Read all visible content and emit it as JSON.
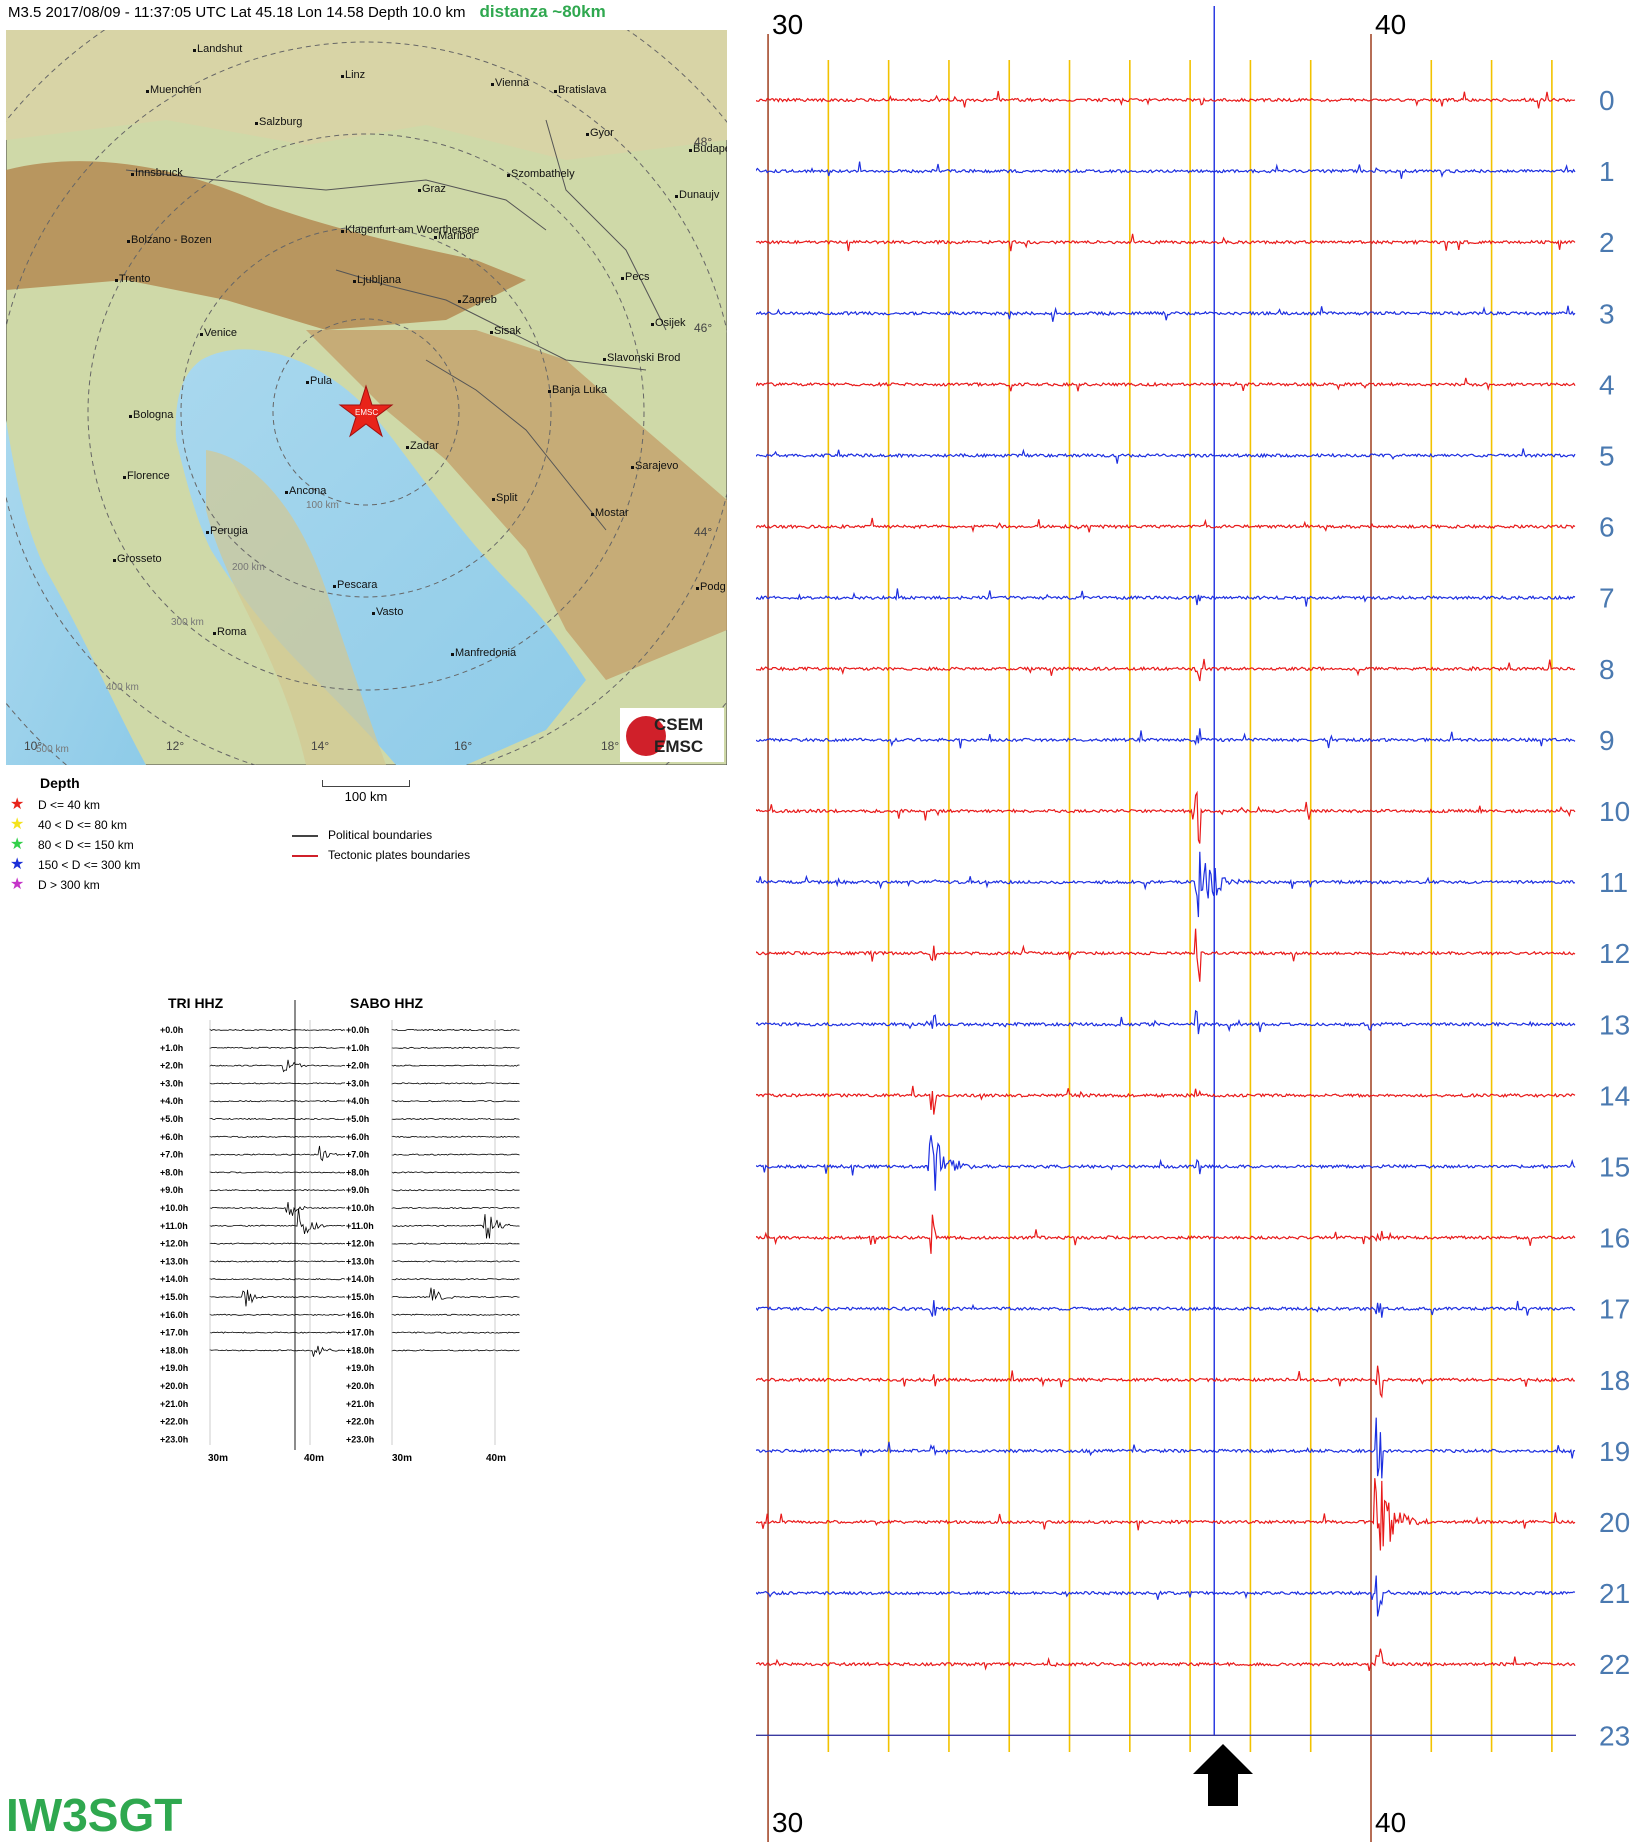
{
  "header": {
    "event": "M3.5  2017/08/09 - 11:37:05 UTC   Lat 45.18  Lon  14.58    Depth  10.0 km",
    "distance": "distanza ~80km"
  },
  "map": {
    "cities": [
      {
        "name": "Landshut"
      },
      {
        "name": "Linz"
      },
      {
        "name": "Vienna"
      },
      {
        "name": "Bratislava"
      },
      {
        "name": "Muenchen"
      },
      {
        "name": "Salzburg"
      },
      {
        "name": "Gyor"
      },
      {
        "name": "Budape"
      },
      {
        "name": "Innsbruck"
      },
      {
        "name": "Szombathely"
      },
      {
        "name": "Graz"
      },
      {
        "name": "Dunaujv"
      },
      {
        "name": "Klagenfurt am Woerthersee"
      },
      {
        "name": "Maribor"
      },
      {
        "name": "Bolzano - Bozen"
      },
      {
        "name": "Trento"
      },
      {
        "name": "Ljubljana"
      },
      {
        "name": "Zagreb"
      },
      {
        "name": "Pecs"
      },
      {
        "name": "Osijek"
      },
      {
        "name": "Venice"
      },
      {
        "name": "Sisak"
      },
      {
        "name": "Slavonski Brod"
      },
      {
        "name": "Pula"
      },
      {
        "name": "Banja Luka"
      },
      {
        "name": "Bologna"
      },
      {
        "name": "Zadar"
      },
      {
        "name": "Sarajevo"
      },
      {
        "name": "Florence"
      },
      {
        "name": "Ancona"
      },
      {
        "name": "Split"
      },
      {
        "name": "Mostar"
      },
      {
        "name": "Perugia"
      },
      {
        "name": "Grosseto"
      },
      {
        "name": "Pescara"
      },
      {
        "name": "Podg"
      },
      {
        "name": "Vasto"
      },
      {
        "name": "Roma"
      },
      {
        "name": "Manfredonia"
      }
    ],
    "ring_labels": [
      "100 km",
      "200 km",
      "300 km",
      "400 km",
      "500 km"
    ],
    "lat_labels": [
      "48°",
      "46°",
      "44°"
    ],
    "lon_labels": [
      "10°",
      "12°",
      "14°",
      "16°",
      "18°"
    ],
    "epicenter_label": "EMSC",
    "logo_top": "CSEM",
    "logo_bottom": "EMSC"
  },
  "legend": {
    "title": "Depth",
    "items": [
      {
        "label": "D <= 40 km",
        "color": "#e8231a"
      },
      {
        "label": "40 < D <= 80 km",
        "color": "#f4e31c"
      },
      {
        "label": "80 < D <= 150 km",
        "color": "#33d04a"
      },
      {
        "label": "150 < D <= 300 km",
        "color": "#1b2fd8"
      },
      {
        "label": "D > 300 km",
        "color": "#c534c8"
      }
    ],
    "boundaries": [
      {
        "label": "Political boundaries",
        "color": "#444444"
      },
      {
        "label": "Tectonic plates boundaries",
        "color": "#d0202a"
      }
    ],
    "scale": "100 km"
  },
  "mini": {
    "station_a": "TRI HHZ",
    "station_b": "SABO HHZ",
    "hours": [
      "+0.0h",
      "+1.0h",
      "+2.0h",
      "+3.0h",
      "+4.0h",
      "+5.0h",
      "+6.0h",
      "+7.0h",
      "+8.0h",
      "+9.0h",
      "+10.0h",
      "+11.0h",
      "+12.0h",
      "+13.0h",
      "+14.0h",
      "+15.0h",
      "+16.0h",
      "+17.0h",
      "+18.0h",
      "+19.0h",
      "+20.0h",
      "+21.0h",
      "+22.0h",
      "+23.0h"
    ],
    "x_ticks": [
      "30m",
      "40m"
    ]
  },
  "station_name": "IW3SGT",
  "chart_data": {
    "type": "line",
    "title": "",
    "x_top_ticks": [
      "30",
      "40"
    ],
    "x_bottom_ticks": [
      "30",
      "40"
    ],
    "xlim": [
      29.8,
      43.4
    ],
    "x_gridlines": [
      31,
      32,
      33,
      34,
      35,
      36,
      37,
      38,
      39,
      41,
      42,
      43
    ],
    "x_major": [
      30,
      40
    ],
    "rows": [
      "0",
      "1",
      "2",
      "3",
      "4",
      "5",
      "6",
      "7",
      "8",
      "9",
      "10",
      "11",
      "12",
      "13",
      "14",
      "15",
      "16",
      "17",
      "18",
      "19",
      "20",
      "21",
      "22",
      "23"
    ],
    "colors": {
      "odd": "#1d2fe0",
      "even": "#e81a1a",
      "grid": "#f2c200",
      "major": "#a44a2c",
      "blue_marker": "#1d2fe0"
    },
    "marker_minute": 37.4,
    "events": [
      {
        "row": 11,
        "minute": 37.1,
        "amplitude": 1.0
      },
      {
        "row": 15,
        "minute": 32.7,
        "amplitude": 0.7
      },
      {
        "row": 20,
        "minute": 40.1,
        "amplitude": 1.0
      }
    ]
  }
}
